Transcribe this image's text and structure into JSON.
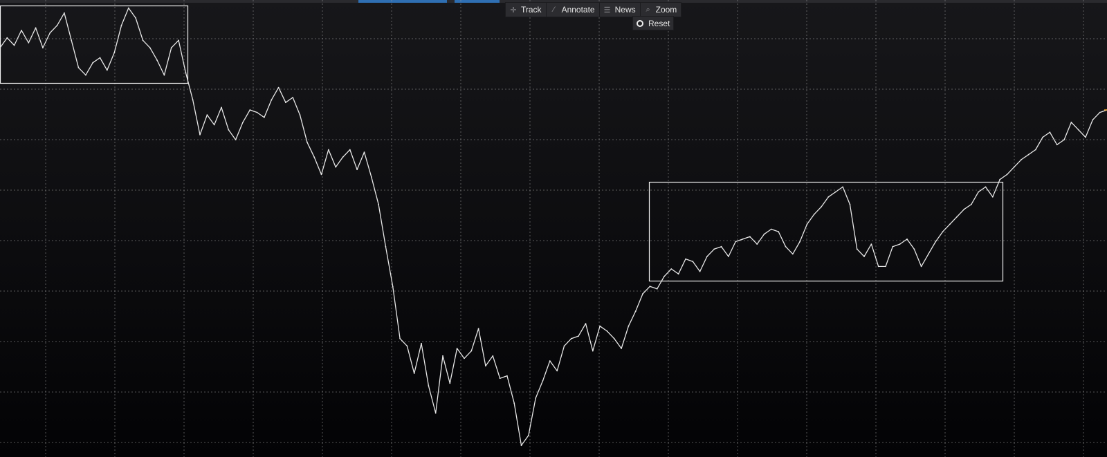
{
  "toolbar": {
    "track_label": "Track",
    "annotate_label": "Annotate",
    "news_label": "News",
    "zoom_label": "Zoom",
    "reset_label": "Reset"
  },
  "colors": {
    "background": "#0a0a0c",
    "line": "#e8e8e8",
    "grid": "#9a9a9a",
    "box": "#f2f2f2",
    "accent_tab": "#2f6fb3",
    "last_point": "#f0a020"
  },
  "chart_data": {
    "type": "line",
    "title": "",
    "xlabel": "",
    "ylabel": "",
    "grid": true,
    "xlim": [
      0,
      155
    ],
    "ylim": [
      0,
      9
    ],
    "series": [
      {
        "values": [
          8.15,
          8.35,
          8.2,
          8.5,
          8.25,
          8.55,
          8.15,
          8.45,
          8.6,
          8.85,
          8.3,
          7.75,
          7.6,
          7.85,
          7.95,
          7.7,
          8.05,
          8.6,
          8.95,
          8.75,
          8.3,
          8.15,
          7.9,
          7.6,
          8.15,
          8.3,
          7.65,
          7.1,
          6.4,
          6.8,
          6.6,
          6.95,
          6.5,
          6.3,
          6.65,
          6.9,
          6.85,
          6.75,
          7.1,
          7.35,
          7.05,
          7.15,
          6.8,
          6.25,
          5.95,
          5.6,
          6.1,
          5.75,
          5.95,
          6.1,
          5.7,
          6.05,
          5.55,
          5.0,
          4.15,
          3.35,
          2.3,
          2.15,
          1.6,
          2.2,
          1.35,
          0.8,
          1.95,
          1.4,
          2.1,
          1.9,
          2.05,
          2.5,
          1.75,
          1.95,
          1.5,
          1.55,
          1.0,
          0.15,
          0.35,
          1.1,
          1.45,
          1.85,
          1.65,
          2.15,
          2.3,
          2.35,
          2.6,
          2.05,
          2.55,
          2.45,
          2.3,
          2.1,
          2.55,
          2.85,
          3.2,
          3.35,
          3.3,
          3.55,
          3.7,
          3.6,
          3.9,
          3.85,
          3.65,
          3.95,
          4.1,
          4.15,
          3.95,
          4.25,
          4.3,
          4.35,
          4.2,
          4.4,
          4.5,
          4.45,
          4.15,
          4.0,
          4.25,
          4.6,
          4.8,
          4.95,
          5.15,
          5.25,
          5.35,
          5.0,
          4.1,
          3.95,
          4.2,
          3.75,
          3.75,
          4.15,
          4.2,
          4.3,
          4.1,
          3.75,
          4.0,
          4.25,
          4.45,
          4.6,
          4.75,
          4.9,
          5.0,
          5.25,
          5.35,
          5.15,
          5.5,
          5.6,
          5.75,
          5.9,
          6.0,
          6.1,
          6.35,
          6.45,
          6.2,
          6.3,
          6.65,
          6.5,
          6.35,
          6.7,
          6.85,
          6.9
        ]
      }
    ]
  }
}
